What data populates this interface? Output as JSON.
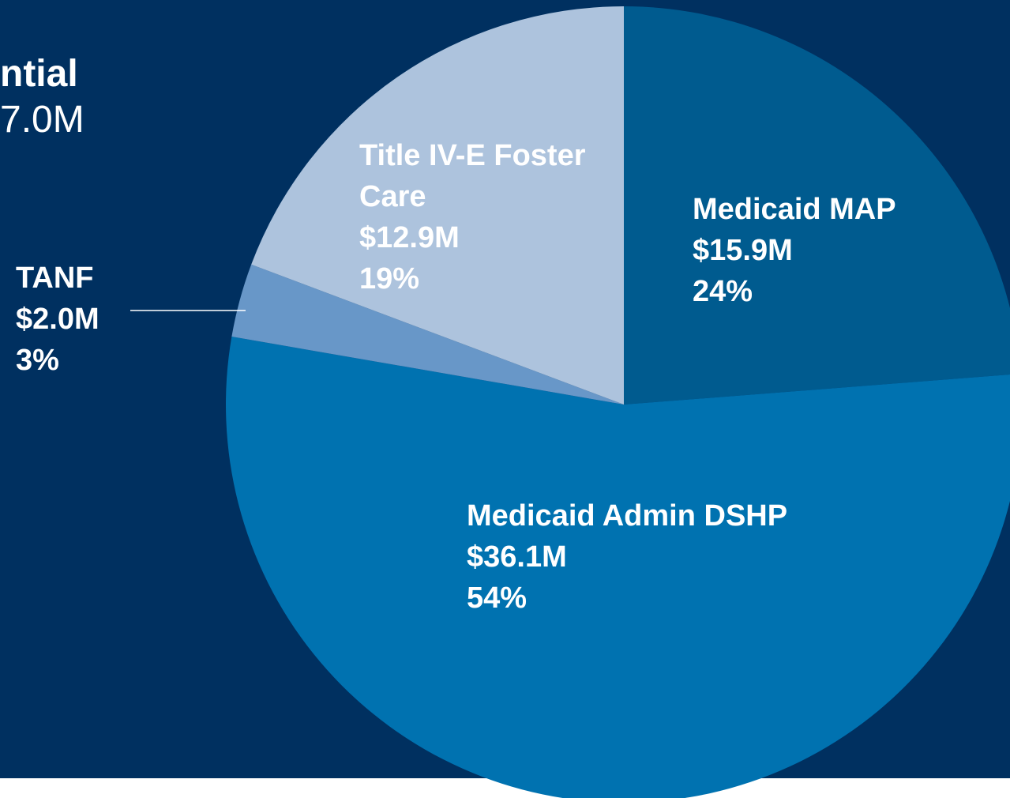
{
  "chart_data": {
    "type": "pie",
    "title": "ntial",
    "subtitle": "7.0M",
    "categories": [
      "Medicaid MAP",
      "Medicaid Admin DSHP",
      "TANF",
      "Title IV-E Foster Care"
    ],
    "values": [
      15.9,
      36.1,
      2.0,
      12.9
    ],
    "value_labels": [
      "$15.9M",
      "$36.1M",
      "$2.0M",
      "$12.9M"
    ],
    "shares": [
      24,
      54,
      3,
      19
    ],
    "share_labels": [
      "24%",
      "54%",
      "3%",
      "19%"
    ],
    "colors": [
      "#005b8f",
      "#0072b0",
      "#6897c8",
      "#adc3dd"
    ]
  }
}
